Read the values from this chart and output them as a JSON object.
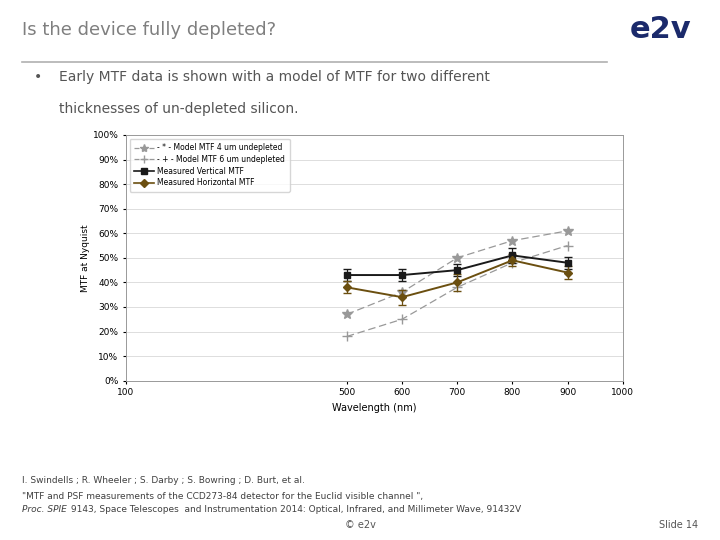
{
  "title": "Is the device fully depleted?",
  "bullet_text1": "Early MTF data is shown with a model of MTF for two different",
  "bullet_text2": "thicknesses of un-depleted silicon.",
  "wavelengths": [
    500,
    600,
    700,
    800,
    900
  ],
  "model_4um": [
    0.27,
    0.36,
    0.5,
    0.57,
    0.61
  ],
  "model_6um": [
    0.18,
    0.25,
    0.38,
    0.48,
    0.55
  ],
  "measured_vertical": [
    0.43,
    0.43,
    0.45,
    0.51,
    0.48
  ],
  "measured_vertical_err": [
    0.025,
    0.025,
    0.025,
    0.03,
    0.025
  ],
  "measured_horizontal": [
    0.38,
    0.34,
    0.4,
    0.49,
    0.44
  ],
  "measured_horizontal_err": [
    0.025,
    0.03,
    0.035,
    0.025,
    0.025
  ],
  "xlim": [
    100,
    1000
  ],
  "ylim": [
    0.0,
    1.0
  ],
  "ytick_vals": [
    0.0,
    0.1,
    0.2,
    0.3,
    0.4,
    0.5,
    0.6,
    0.7,
    0.8,
    0.9,
    1.0
  ],
  "ytick_labels": [
    "0%",
    "10%",
    "20%",
    "30%",
    "40%",
    "50%",
    "60%",
    "70%",
    "80%",
    "90%",
    "100%"
  ],
  "xticks": [
    100,
    500,
    600,
    700,
    800,
    900,
    1000
  ],
  "xlabel": "Wavelength (nm)",
  "ylabel": "MTF at Nyquist",
  "legend_labels": [
    "- * - Model MTF 4 um undepleted",
    "- + - Model MTF 6 um undepleted",
    "Measured Vertical MTF",
    "Measured Horizontal MTF"
  ],
  "color_model4": "#999999",
  "color_model6": "#999999",
  "color_vertical": "#1a1a1a",
  "color_horizontal": "#6B4F10",
  "footer_line1": "I. Swindells ; R. Wheeler ; S. Darby ; S. Bowring ; D. Burt, et al.",
  "footer_line2_plain": "\"MTF and PSF measurements of the CCD273-84 detector for the Euclid visible channel \", ",
  "footer_line2_italic": "Proc. SPIE",
  "footer_line2_rest": " 9143, Space Telescopes",
  "footer_line3": "and Instrumentation 2014: Optical, Infrared, and Millimeter Wave, 91432V",
  "copyright_text": "© e2v",
  "slide_text": "Slide 14",
  "bg_color": "#ffffff",
  "title_color": "#7f7f7f",
  "e2v_color": "#1B2A6B",
  "sep_color": "#b0b0b0"
}
